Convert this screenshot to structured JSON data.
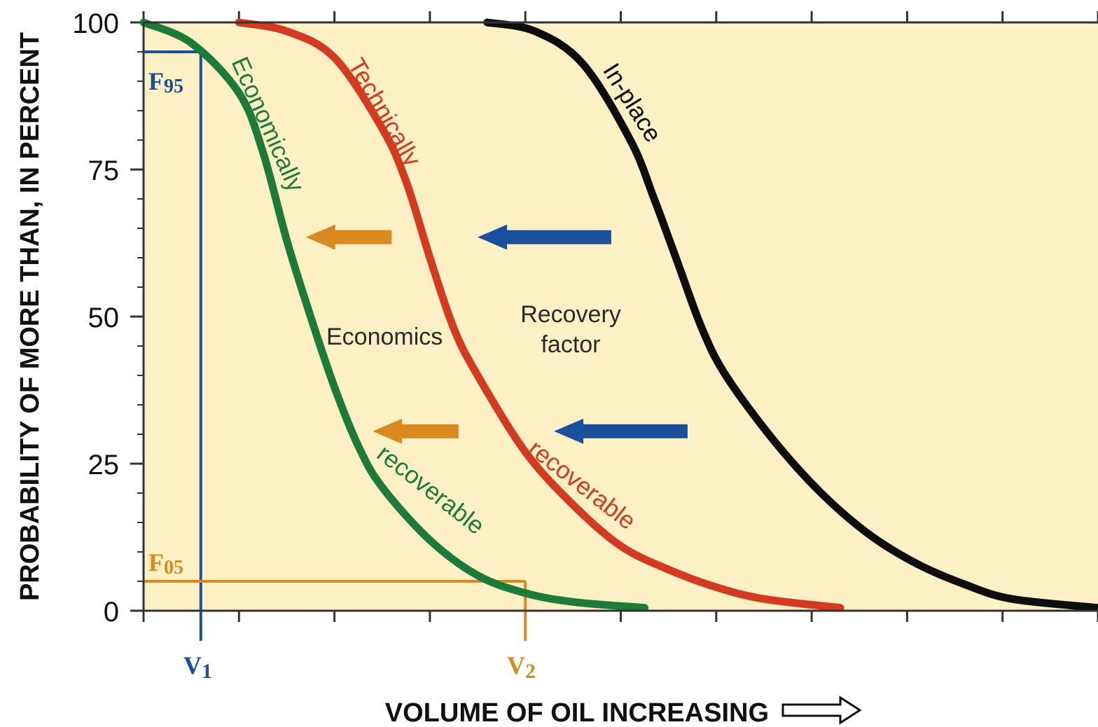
{
  "chart_data": {
    "type": "line",
    "title": "",
    "xlabel": "VOLUME OF OIL INCREASING",
    "ylabel": "PROBABILITY OF MORE THAN, IN PERCENT",
    "ylim": [
      0,
      100
    ],
    "xlim": [
      0,
      100
    ],
    "y_ticks": [
      0,
      25,
      50,
      75,
      100
    ],
    "y_tick_labels": [
      "0",
      "25",
      "50",
      "75",
      "100"
    ],
    "x_tick_count": 10,
    "x_tick_labels_shown": false,
    "grid": false,
    "background_color": "#fdf0c4",
    "series": [
      {
        "key": "economically",
        "label_line1": "Economically",
        "label_line2": "recoverable",
        "color": "#1d7a3a",
        "x": [
          0,
          5,
          10,
          12.5,
          15,
          17.5,
          20,
          22.5,
          25,
          30,
          35,
          40,
          45,
          52.5
        ],
        "y": [
          100,
          96.5,
          88,
          78,
          63,
          50,
          38,
          28,
          21,
          12,
          6,
          3,
          1.5,
          0.5
        ]
      },
      {
        "key": "technically",
        "label_line1": "Technically",
        "label_line2": "recoverable",
        "color": "#d43a22",
        "x": [
          10,
          15,
          20,
          25,
          27.5,
          30,
          32.5,
          35,
          40,
          45,
          50,
          55,
          60,
          65,
          73
        ],
        "y": [
          100,
          98.5,
          94,
          82,
          73,
          60,
          48,
          40,
          27,
          18,
          11,
          7,
          4,
          2,
          0.5
        ]
      },
      {
        "key": "in_place",
        "label_line1": "In-place",
        "label_line2": "",
        "color": "#0d0d0d",
        "x": [
          36,
          41,
          46,
          51,
          53.5,
          56,
          58.5,
          61,
          66,
          71,
          76,
          81,
          86,
          91,
          100
        ],
        "y": [
          100,
          98.5,
          93,
          80,
          70,
          59,
          48,
          40,
          29,
          20,
          13,
          8,
          4.5,
          2,
          0.5
        ]
      }
    ],
    "reference_lines": {
      "f95": {
        "label": "F95",
        "label_main": "F",
        "label_sub": "95",
        "y": 95,
        "color": "#1a4f9c"
      },
      "f05": {
        "label": "F05",
        "label_main": "F",
        "label_sub": "05",
        "y": 5,
        "color": "#d98a1e"
      },
      "v1": {
        "label": "V1",
        "label_main": "V",
        "label_sub": "1",
        "x": 6,
        "color": "#1a4f9c"
      },
      "v2": {
        "label": "V2",
        "label_main": "V",
        "label_sub": "2",
        "x": 40,
        "color": "#d98a1e"
      }
    },
    "annotations": {
      "economics": "Economics",
      "recovery_line1": "Recovery",
      "recovery_line2": "factor"
    },
    "arrows": [
      {
        "key": "recovery-upper",
        "color": "#1a4f9c",
        "x_tail": 49,
        "x_head": 35,
        "y": 63.5
      },
      {
        "key": "economics-upper",
        "color": "#d98a1e",
        "x_tail": 26,
        "x_head": 17,
        "y": 63.5
      },
      {
        "key": "recovery-lower",
        "color": "#1a4f9c",
        "x_tail": 57,
        "x_head": 43,
        "y": 30.5
      },
      {
        "key": "economics-lower",
        "color": "#d98a1e",
        "x_tail": 33,
        "x_head": 24,
        "y": 30.5
      }
    ]
  }
}
